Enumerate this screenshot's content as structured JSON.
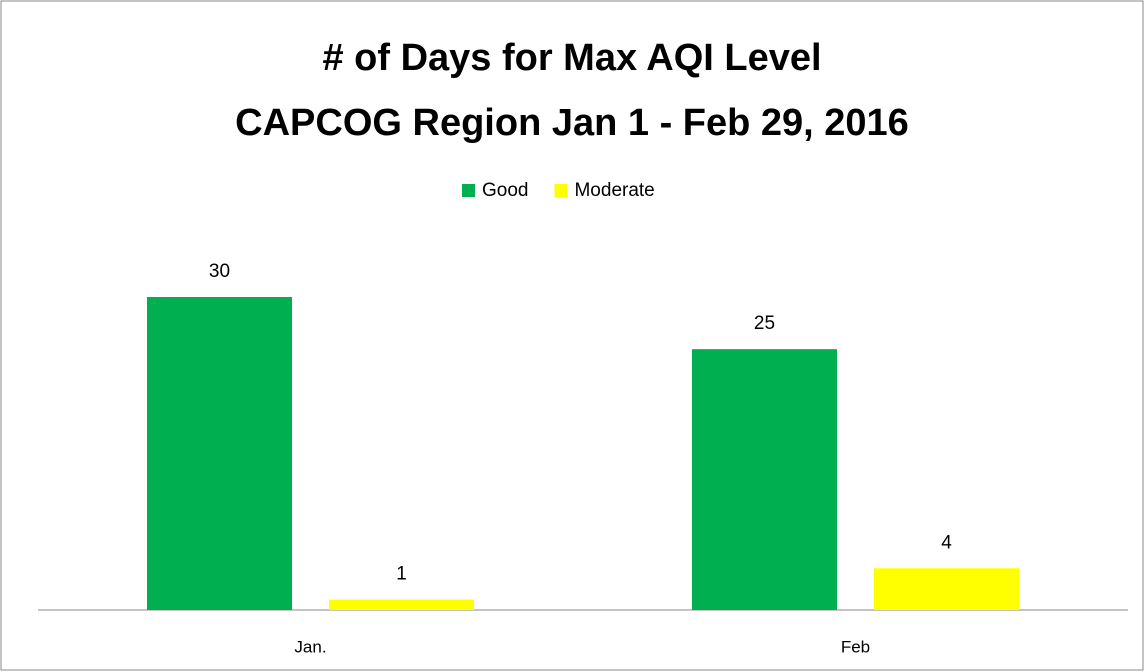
{
  "chart_data": {
    "type": "bar",
    "title": [
      "# of Days for Max AQI Level",
      "CAPCOG Region Jan 1 - Feb 29, 2016"
    ],
    "categories": [
      "Jan.",
      "Feb"
    ],
    "series": [
      {
        "name": "Good",
        "color": "#00b050",
        "values": [
          30,
          25
        ]
      },
      {
        "name": "Moderate",
        "color": "#ffff00",
        "values": [
          1,
          4
        ]
      }
    ],
    "legend": "top"
  }
}
